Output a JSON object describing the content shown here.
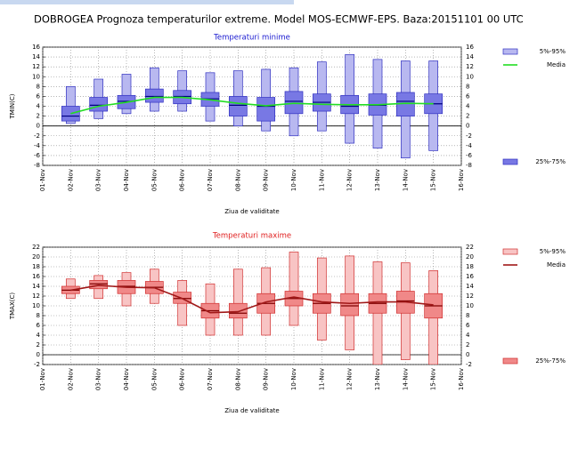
{
  "title": "DOBROGEA  Prognoza temperaturilor extreme.  Model MOS-ECMWF-EPS. Baza:20151101 00 UTC",
  "chart_data": [
    {
      "type": "box",
      "subtitle": "Temperaturi minime",
      "ylabel": "TMIN(C)",
      "xlabel": "Ziua de validitate",
      "categories": [
        "01-Nov",
        "02-Nov",
        "03-Nov",
        "04-Nov",
        "05-Nov",
        "06-Nov",
        "07-Nov",
        "08-Nov",
        "09-Nov",
        "10-Nov",
        "11-Nov",
        "12-Nov",
        "13-Nov",
        "14-Nov",
        "15-Nov",
        "16-Nov"
      ],
      "p5": [
        null,
        0.5,
        1.5,
        2.5,
        3,
        3,
        1,
        0,
        -1,
        -2,
        -1,
        -3.5,
        -4.5,
        -6.5,
        -5,
        null
      ],
      "q25": [
        null,
        1,
        3,
        3.5,
        4.8,
        4.5,
        4,
        2,
        1,
        2.5,
        3,
        2.5,
        2.2,
        2,
        2.5,
        null
      ],
      "median": [
        null,
        2,
        4.2,
        5,
        6,
        6,
        5.5,
        4.2,
        4,
        5,
        4.8,
        4,
        4.2,
        5,
        4.5,
        null
      ],
      "q75": [
        null,
        4,
        5.8,
        6.2,
        7.5,
        7.2,
        6.8,
        6,
        5.8,
        7,
        6.5,
        6.2,
        6.5,
        6.8,
        6.5,
        null
      ],
      "p95": [
        null,
        8,
        9.5,
        10.5,
        11.8,
        11.2,
        10.8,
        11.2,
        11.5,
        11.8,
        13,
        14.5,
        13.5,
        13.2,
        13.2,
        null
      ],
      "mean": [
        null,
        2.5,
        4,
        4.8,
        5.8,
        5.8,
        5.3,
        4.6,
        4.1,
        4.6,
        4.4,
        4.3,
        4.3,
        4.6,
        4.5,
        null
      ],
      "legend": {
        "range": "5%-95%",
        "mean": "Media",
        "box": "25%-75%"
      },
      "colors": {
        "range": "#b8b8f0",
        "box": "#7878e4",
        "edge": "#3030c0",
        "median": "#000080",
        "mean": "#22dd22",
        "subtitle": "#1a1ad0"
      },
      "ylim": [
        -8,
        16
      ],
      "yticks": [
        -8,
        -6,
        -4,
        -2,
        0,
        2,
        4,
        6,
        8,
        10,
        12,
        14,
        16
      ],
      "grid": true
    },
    {
      "type": "box",
      "subtitle": "Temperaturi maxime",
      "ylabel": "TMAX(C)",
      "xlabel": "Ziua de validitate",
      "categories": [
        "01-Nov",
        "02-Nov",
        "03-Nov",
        "04-Nov",
        "05-Nov",
        "06-Nov",
        "07-Nov",
        "08-Nov",
        "09-Nov",
        "10-Nov",
        "11-Nov",
        "12-Nov",
        "13-Nov",
        "14-Nov",
        "15-Nov",
        "16-Nov"
      ],
      "p5": [
        null,
        11.5,
        11.5,
        10,
        10.5,
        6,
        4,
        4,
        4,
        6,
        3,
        1,
        -2,
        -1,
        -2,
        null
      ],
      "q25": [
        null,
        12.5,
        13.5,
        12.5,
        12.5,
        10.5,
        7.5,
        7.5,
        8.5,
        10,
        8.5,
        8,
        8.5,
        8.5,
        7.5,
        null
      ],
      "median": [
        null,
        13.2,
        14.5,
        14,
        13.8,
        11.5,
        9,
        8.5,
        10.5,
        11.5,
        10.5,
        10,
        10.5,
        11,
        10,
        null
      ],
      "q75": [
        null,
        14,
        15.2,
        15.2,
        15,
        12.8,
        10.5,
        10.5,
        12.5,
        13,
        12.5,
        12.5,
        12.5,
        13,
        12.5,
        null
      ],
      "p95": [
        null,
        15.5,
        16.2,
        16.8,
        17.5,
        15.2,
        14.5,
        17.5,
        17.8,
        21,
        19.8,
        20.2,
        19,
        18.8,
        17.2,
        null
      ],
      "mean": [
        null,
        13.2,
        14.2,
        13.8,
        13.7,
        11.5,
        8.6,
        8.8,
        10.8,
        11.8,
        10.8,
        10.5,
        10.8,
        10.8,
        10.2,
        null
      ],
      "legend": {
        "range": "5%-95%",
        "mean": "Media",
        "box": "25%-75%"
      },
      "colors": {
        "range": "#f8c4c4",
        "box": "#f08888",
        "edge": "#d03030",
        "median": "#800000",
        "mean": "#a01818",
        "subtitle": "#e02020"
      },
      "ylim": [
        -2,
        22
      ],
      "yticks": [
        -2,
        0,
        2,
        4,
        6,
        8,
        10,
        12,
        14,
        16,
        18,
        20,
        22
      ],
      "grid": true
    }
  ]
}
